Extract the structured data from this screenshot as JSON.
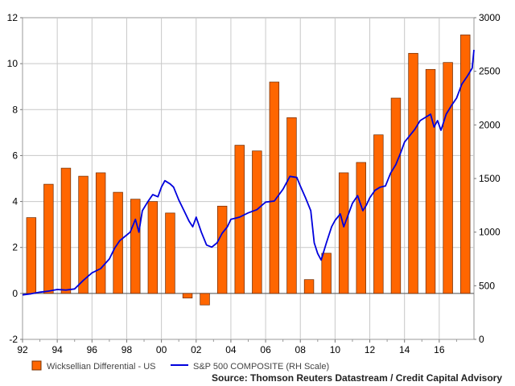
{
  "chart_data": {
    "type": "bar",
    "title": "",
    "source": "Source: Thomson Reuters Datastream / Credit Capital Advisory",
    "x_tick_labels": [
      "92",
      "94",
      "96",
      "98",
      "00",
      "02",
      "04",
      "06",
      "08",
      "10",
      "12",
      "14",
      "16"
    ],
    "x_tick_years": [
      1992,
      1994,
      1996,
      1998,
      2000,
      2002,
      2004,
      2006,
      2008,
      2010,
      2012,
      2014,
      2016
    ],
    "xlim": [
      1992,
      2018
    ],
    "ylim_left": [
      -2,
      12
    ],
    "y_ticks_left": [
      -2,
      0,
      2,
      4,
      6,
      8,
      10,
      12
    ],
    "ylim_right": [
      0,
      3000
    ],
    "y_ticks_right": [
      0,
      500,
      1000,
      1500,
      2000,
      2500,
      3000
    ],
    "grid": true,
    "legend_placement": "bottom-left",
    "series": [
      {
        "name": "Wicksellian Differential - US",
        "axis": "left",
        "style": "bar",
        "color": "#ff6600",
        "x": [
          1992,
          1993,
          1994,
          1995,
          1996,
          1997,
          1998,
          1999,
          2000,
          2001,
          2002,
          2003,
          2004,
          2005,
          2006,
          2007,
          2008,
          2009,
          2010,
          2011,
          2012,
          2013,
          2014,
          2015,
          2016,
          2017
        ],
        "values": [
          3.3,
          4.75,
          5.45,
          5.1,
          5.25,
          4.4,
          4.1,
          4.0,
          3.5,
          -0.2,
          -0.5,
          3.8,
          6.45,
          6.2,
          9.2,
          7.65,
          0.6,
          1.75,
          5.25,
          5.7,
          6.9,
          8.5,
          10.45,
          9.75,
          10.05,
          11.25
        ]
      },
      {
        "name": "S&P 500 COMPOSITE (RH Scale)",
        "axis": "right",
        "style": "line",
        "color": "#0000dd",
        "x": [
          1992.0,
          1992.5,
          1993.0,
          1993.5,
          1994.0,
          1994.5,
          1995.0,
          1995.5,
          1996.0,
          1996.5,
          1997.0,
          1997.3,
          1997.6,
          1997.9,
          1998.2,
          1998.5,
          1998.7,
          1998.9,
          1999.2,
          1999.5,
          1999.8,
          2000.0,
          2000.2,
          2000.5,
          2000.7,
          2001.0,
          2001.3,
          2001.6,
          2001.8,
          2002.0,
          2002.3,
          2002.6,
          2002.9,
          2003.2,
          2003.5,
          2003.8,
          2004.0,
          2004.5,
          2005.0,
          2005.5,
          2006.0,
          2006.5,
          2007.0,
          2007.4,
          2007.8,
          2008.0,
          2008.3,
          2008.6,
          2008.8,
          2009.0,
          2009.2,
          2009.5,
          2009.8,
          2010.0,
          2010.3,
          2010.5,
          2010.8,
          2011.0,
          2011.3,
          2011.6,
          2011.8,
          2012.0,
          2012.3,
          2012.6,
          2012.9,
          2013.2,
          2013.5,
          2013.8,
          2014.0,
          2014.3,
          2014.6,
          2014.9,
          2015.2,
          2015.5,
          2015.7,
          2015.9,
          2016.1,
          2016.4,
          2016.7,
          2017.0,
          2017.3,
          2017.6,
          2017.9,
          2018.0
        ],
        "values": [
          415,
          425,
          440,
          450,
          465,
          460,
          470,
          550,
          620,
          660,
          750,
          850,
          920,
          960,
          1000,
          1120,
          1000,
          1200,
          1280,
          1350,
          1330,
          1420,
          1480,
          1450,
          1420,
          1300,
          1200,
          1100,
          1050,
          1140,
          1000,
          880,
          860,
          900,
          990,
          1050,
          1120,
          1140,
          1180,
          1210,
          1280,
          1290,
          1400,
          1520,
          1510,
          1430,
          1320,
          1200,
          900,
          800,
          740,
          900,
          1050,
          1110,
          1170,
          1050,
          1180,
          1270,
          1340,
          1200,
          1250,
          1320,
          1390,
          1420,
          1430,
          1550,
          1630,
          1750,
          1840,
          1900,
          1960,
          2040,
          2070,
          2100,
          1980,
          2040,
          1950,
          2100,
          2180,
          2250,
          2380,
          2450,
          2530,
          2700
        ]
      }
    ]
  }
}
